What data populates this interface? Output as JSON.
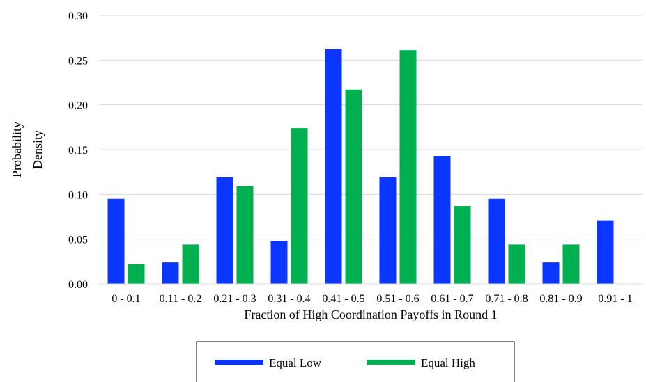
{
  "chart_data": {
    "type": "bar",
    "title": "",
    "xlabel": "Fraction of High Coordination Payoffs in Round 1",
    "ylabel_lines": [
      "Probability",
      "Density"
    ],
    "ylim": [
      0,
      0.3
    ],
    "yticks": [
      "0.00",
      "0.05",
      "0.10",
      "0.15",
      "0.20",
      "0.25",
      "0.30"
    ],
    "categories": [
      "0 - 0.1",
      "0.11 - 0.2",
      "0.21 - 0.3",
      "0.31 - 0.4",
      "0.41 - 0.5",
      "0.51 - 0.6",
      "0.61 - 0.7",
      "0.71 - 0.8",
      "0.81 - 0.9",
      "0.91 - 1"
    ],
    "series": [
      {
        "name": "Equal Low",
        "color": "#0a36ff",
        "values": [
          0.095,
          0.024,
          0.119,
          0.048,
          0.262,
          0.119,
          0.143,
          0.095,
          0.024,
          0.071
        ]
      },
      {
        "name": "Equal High",
        "color": "#00b050",
        "values": [
          0.022,
          0.044,
          0.109,
          0.174,
          0.217,
          0.261,
          0.087,
          0.044,
          0.044,
          0.0
        ]
      }
    ],
    "grid": true,
    "legend_position": "bottom"
  }
}
